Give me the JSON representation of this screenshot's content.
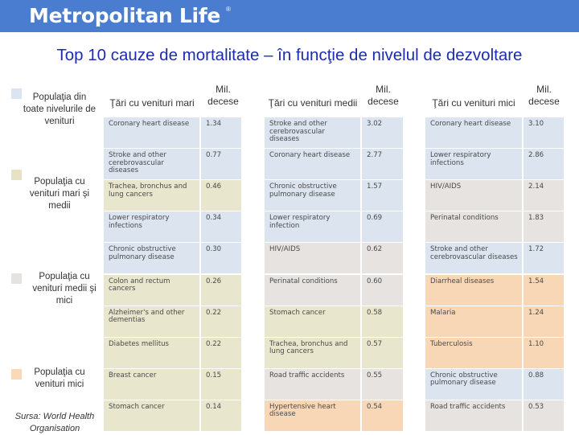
{
  "header": {
    "brand": "Metropolitan Life",
    "mark": "®"
  },
  "title": "Top 10 cauze de mortalitate – în funcţie de nivelul de dezvoltare",
  "colors": {
    "topbar": "#4a7cd0",
    "all": "#dbe4ef",
    "high": "#e8e6cc",
    "middle": "#e6e3e1",
    "low": "#f8d7b6",
    "all_legend": "#dbe4ef",
    "high_legend": "#e6e2c3",
    "middle_legend": "#e5e3e1",
    "low_legend": "#fbd8b7"
  },
  "legend": [
    {
      "label": "Populaţia din toate nivelurile de venituri",
      "category": "all"
    },
    {
      "label": "Populaţia cu venituri mari şi medii",
      "category": "high"
    },
    {
      "label": "Populaţia cu venituri medii şi mici",
      "category": "middle"
    },
    {
      "label": "Populaţia cu venituri mici",
      "category": "low"
    }
  ],
  "source": "Sursa: World Health Organisation",
  "columns": [
    {
      "heading": "Ţări cu venituri mari",
      "deaths_heading": "Mil. decese",
      "rows": [
        {
          "cause": "Coronary heart disease",
          "deaths": "1.34",
          "category": "all"
        },
        {
          "cause": "Stroke and other cerebrovascular diseases",
          "deaths": "0.77",
          "category": "all"
        },
        {
          "cause": "Trachea, bronchus and lung cancers",
          "deaths": "0.46",
          "category": "high"
        },
        {
          "cause": "Lower respiratory infections",
          "deaths": "0.34",
          "category": "all"
        },
        {
          "cause": "Chronic obstructive pulmonary disease",
          "deaths": "0.30",
          "category": "all"
        },
        {
          "cause": "Colon and rectum cancers",
          "deaths": "0.26",
          "category": "high"
        },
        {
          "cause": "Alzheimer's and other dementias",
          "deaths": "0.22",
          "category": "high"
        },
        {
          "cause": "Diabetes mellitus",
          "deaths": "0.22",
          "category": "high"
        },
        {
          "cause": "Breast cancer",
          "deaths": "0.15",
          "category": "high"
        },
        {
          "cause": "Stomach cancer",
          "deaths": "0.14",
          "category": "high"
        }
      ]
    },
    {
      "heading": "Ţări cu venituri medii",
      "deaths_heading": "Mil. decese",
      "rows": [
        {
          "cause": "Stroke and other cerebrovascular diseases",
          "deaths": "3.02",
          "category": "all"
        },
        {
          "cause": "Coronary heart disease",
          "deaths": "2.77",
          "category": "all"
        },
        {
          "cause": "Chronic obstructive pulmonary disease",
          "deaths": "1.57",
          "category": "all"
        },
        {
          "cause": "Lower respiratory infection",
          "deaths": "0.69",
          "category": "all"
        },
        {
          "cause": "HIV/AIDS",
          "deaths": "0.62",
          "category": "middle"
        },
        {
          "cause": "Perinatal conditions",
          "deaths": "0.60",
          "category": "middle"
        },
        {
          "cause": "Stomach cancer",
          "deaths": "0.58",
          "category": "high"
        },
        {
          "cause": "Trachea, bronchus and lung cancers",
          "deaths": "0.57",
          "category": "high"
        },
        {
          "cause": "Road traffic accidents",
          "deaths": "0.55",
          "category": "middle"
        },
        {
          "cause": "Hypertensive heart disease",
          "deaths": "0.54",
          "category": "low"
        }
      ]
    },
    {
      "heading": "Ţări cu venituri mici",
      "deaths_heading": "Mil. decese",
      "rows": [
        {
          "cause": "Coronary heart disease",
          "deaths": "3.10",
          "category": "all"
        },
        {
          "cause": "Lower respiratory infections",
          "deaths": "2.86",
          "category": "all"
        },
        {
          "cause": "HIV/AIDS",
          "deaths": "2.14",
          "category": "middle"
        },
        {
          "cause": "Perinatal conditions",
          "deaths": "1.83",
          "category": "middle"
        },
        {
          "cause": "Stroke and other cerebrovascular diseases",
          "deaths": "1.72",
          "category": "all"
        },
        {
          "cause": "Diarrheal diseases",
          "deaths": "1.54",
          "category": "low"
        },
        {
          "cause": "Malaria",
          "deaths": "1.24",
          "category": "low"
        },
        {
          "cause": "Tuberculosis",
          "deaths": "1.10",
          "category": "low"
        },
        {
          "cause": "Chronic obstructive pulmonary disease",
          "deaths": "0.88",
          "category": "all"
        },
        {
          "cause": "Road traffic accidents",
          "deaths": "0.53",
          "category": "middle"
        }
      ]
    }
  ]
}
